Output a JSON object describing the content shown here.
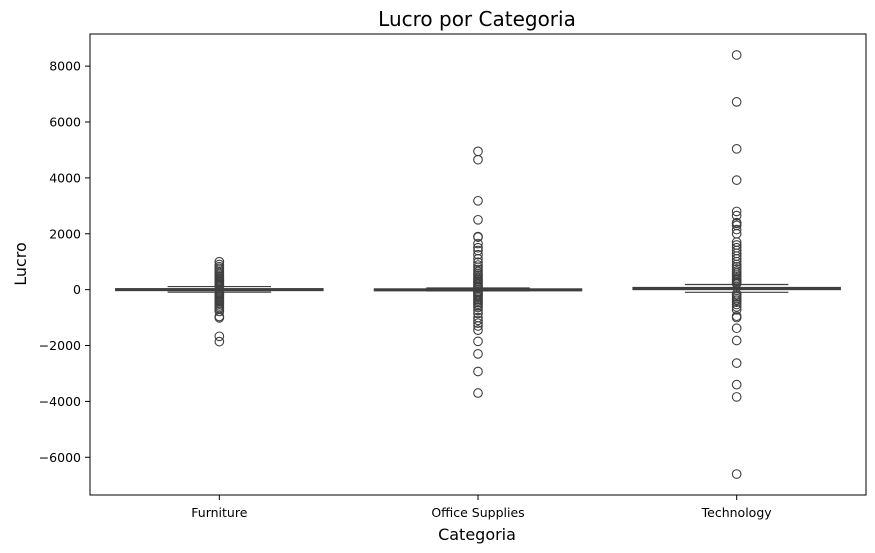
{
  "chart_data": {
    "type": "box",
    "title": "Lucro por Categoria",
    "xlabel": "Categoria",
    "ylabel": "Lucro",
    "categories": [
      "Furniture",
      "Office Supplies",
      "Technology"
    ],
    "ylim": [
      -7350,
      9150
    ],
    "yticks": [
      -6000,
      -4000,
      -2000,
      0,
      2000,
      4000,
      6000,
      8000
    ],
    "grid": false,
    "colors": {
      "box_stroke": "#3f3f3f",
      "axis": "#000000",
      "flier_stroke": "#3f3f3f"
    },
    "boxes": [
      {
        "category": "Furniture",
        "q1": -12,
        "median": 9,
        "q3": 28,
        "whisker_low": -90,
        "whisker_high": 110,
        "outliers": [
          1000,
          900,
          820,
          760,
          700,
          640,
          580,
          520,
          470,
          420,
          380,
          340,
          300,
          260,
          220,
          180,
          150,
          125,
          -125,
          -150,
          -180,
          -220,
          -260,
          -300,
          -340,
          -380,
          -420,
          -470,
          -520,
          -580,
          -640,
          -700,
          -780,
          -960,
          -1010,
          -1670,
          -1860
        ]
      },
      {
        "category": "Office Supplies",
        "q1": -5,
        "median": 7,
        "q3": 20,
        "whisker_low": -45,
        "whisker_high": 60,
        "outliers": [
          4950,
          4650,
          3180,
          2500,
          1900,
          1880,
          1650,
          1500,
          1400,
          1250,
          1100,
          980,
          880,
          800,
          720,
          650,
          580,
          520,
          460,
          400,
          350,
          300,
          250,
          200,
          150,
          100,
          75,
          -75,
          -100,
          -150,
          -200,
          -250,
          -300,
          -350,
          -400,
          -460,
          -520,
          -580,
          -640,
          -740,
          -850,
          -1000,
          -1100,
          -1200,
          -1300,
          -1450,
          -1850,
          -2300,
          -2930,
          -3700
        ]
      },
      {
        "category": "Technology",
        "q1": 10,
        "median": 30,
        "q3": 70,
        "whisker_low": -95,
        "whisker_high": 185,
        "outliers": [
          8400,
          6720,
          5040,
          3920,
          2800,
          2650,
          2400,
          2370,
          2300,
          2150,
          2000,
          1700,
          1600,
          1500,
          1400,
          1300,
          1200,
          1100,
          1000,
          900,
          820,
          740,
          660,
          590,
          520,
          460,
          400,
          350,
          300,
          250,
          215,
          -150,
          -200,
          -260,
          -320,
          -380,
          -450,
          -530,
          -620,
          -720,
          -950,
          -1000,
          -1380,
          -1820,
          -2630,
          -3400,
          -3840,
          -6600
        ]
      }
    ]
  }
}
